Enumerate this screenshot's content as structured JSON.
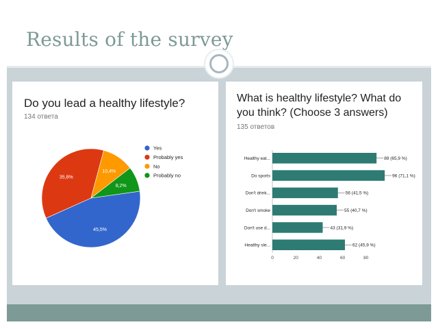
{
  "slide": {
    "title": "Results of the survey"
  },
  "colors": {
    "title": "#7d9a96",
    "band": "#c9d3d8",
    "footer": "#7d9a96",
    "bar": "#2e7b73"
  },
  "chart_data": [
    {
      "type": "pie",
      "title": "Do you lead a healthy lifestyle?",
      "subtitle": "134 ответа",
      "legend_position": "right",
      "slices": [
        {
          "label": "Yes",
          "value": 45.5,
          "display": "45,5%",
          "color": "#3366cc"
        },
        {
          "label": "Probably yes",
          "value": 35.8,
          "display": "35,8%",
          "color": "#dc3912"
        },
        {
          "label": "No",
          "value": 10.4,
          "display": "10,4%",
          "color": "#ff9900"
        },
        {
          "label": "Probably no",
          "value": 8.2,
          "display": "8,2%",
          "color": "#109618"
        }
      ]
    },
    {
      "type": "bar",
      "orientation": "horizontal",
      "title": "What is healthy lifestyle? What do you think? (Choose 3 answers)",
      "subtitle": "135 ответов",
      "categories": [
        "Healthy eat...",
        "Do sports",
        "Don't drink...",
        "Don't smoke",
        "Don't use d...",
        "Healthy sle..."
      ],
      "values": [
        89,
        96,
        56,
        55,
        43,
        62
      ],
      "value_labels": [
        "89 (65,9 %)",
        "96 (71,1 %)",
        "56 (41,5 %)",
        "55 (40,7 %)",
        "43 (31,9 %)",
        "62 (45,9 %)"
      ],
      "xticks": [
        0,
        20,
        40,
        60,
        80
      ],
      "xlim": [
        0,
        100
      ],
      "grid": false,
      "color": "#2e7b73"
    }
  ]
}
